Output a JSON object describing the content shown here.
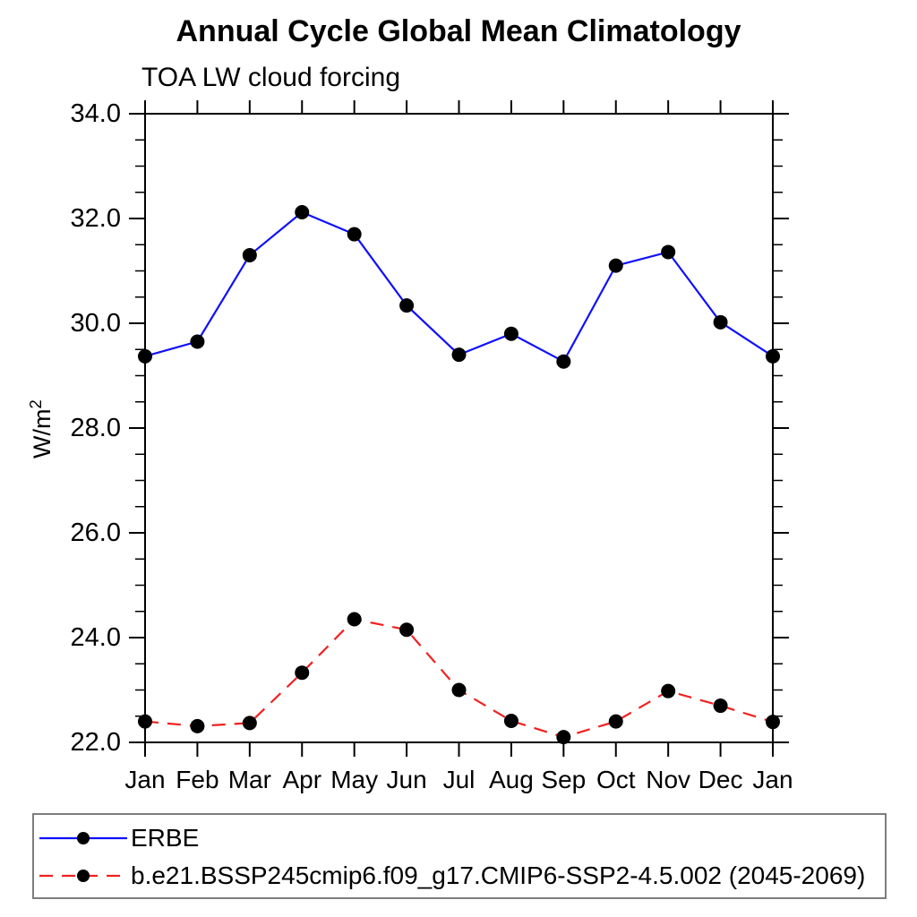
{
  "header": {
    "title": "Annual Cycle Global Mean Climatology",
    "subtitle": "TOA LW cloud forcing"
  },
  "y_axis": {
    "label_base": "W/m",
    "label_exponent": "2"
  },
  "chart_data": {
    "type": "line",
    "title": "Annual Cycle Global Mean Climatology",
    "subtitle": "TOA LW cloud forcing",
    "xlabel": "",
    "ylabel": "W/m2",
    "x_categories": [
      "Jan",
      "Feb",
      "Mar",
      "Apr",
      "May",
      "Jun",
      "Jul",
      "Aug",
      "Sep",
      "Oct",
      "Nov",
      "Dec",
      "Jan"
    ],
    "ylim": [
      22.0,
      34.0
    ],
    "y_major_ticks": [
      22,
      24,
      26,
      28,
      30,
      32,
      34
    ],
    "y_tick_labels": [
      "22.0",
      "24.0",
      "26.0",
      "28.0",
      "30.0",
      "32.0",
      "34.0"
    ],
    "y_minor_step": 0.5,
    "grid": false,
    "legend_position": "bottom-left-box",
    "axis_color": "#000000",
    "marker": "filled-circle",
    "marker_color": "#000000",
    "series": [
      {
        "name": "ERBE",
        "color": "#0f0fff",
        "line_style": "solid",
        "values": [
          29.37,
          29.65,
          31.3,
          32.12,
          31.7,
          30.34,
          29.4,
          29.8,
          29.27,
          31.1,
          31.36,
          30.02,
          29.37
        ]
      },
      {
        "name": "b.e21.BSSP245cmip6.f09_g17.CMIP6-SSP2-4.5.002 (2045-2069)",
        "color": "#f42020",
        "line_style": "dashed",
        "values": [
          22.4,
          22.31,
          22.37,
          23.33,
          24.35,
          24.15,
          23.0,
          22.41,
          22.1,
          22.4,
          22.98,
          22.7,
          22.39
        ]
      }
    ]
  }
}
